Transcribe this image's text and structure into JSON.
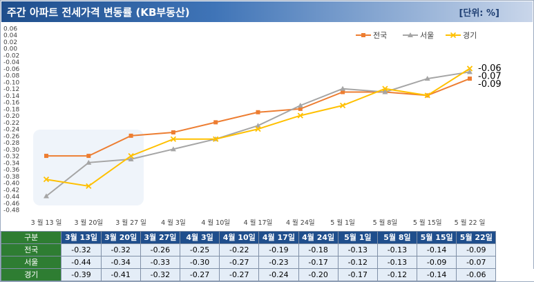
{
  "header": {
    "title": "주간 아파트 전세가격 변동률 (KB부동산)",
    "unit_label": "[단위: %]"
  },
  "table": {
    "corner_label": "구분"
  },
  "chart_data": {
    "type": "line",
    "title": "주간 아파트 전세가격 변동률 (KB부동산)",
    "unit": "[단위: %]",
    "categories": [
      "3월 13일",
      "3월 20일",
      "3월 27일",
      "4월 3일",
      "4월 10일",
      "4월 17일",
      "4월 24일",
      "5월 1일",
      "5월 8일",
      "5월 15일",
      "5월 22일"
    ],
    "axis_categories": [
      "3 월 13 일",
      "3 월 20일",
      "3 월 27 일",
      "4 월 3일",
      "4 월 10일",
      "4 월 17일",
      "4 월 24일",
      "5 월 1일",
      "5 월 8일",
      "5 월 15일",
      "5 월 22 일"
    ],
    "ylim": [
      -0.48,
      0.06
    ],
    "ytick_step": 0.02,
    "ytick_labels": [
      "0.06",
      "0.04",
      "0.02",
      "0.00",
      "-0.02",
      "-0.04",
      "-0.06",
      "-0.08",
      "-0.10",
      "-0.12",
      "-0.14",
      "-0.16",
      "-0.18",
      "-0.20",
      "-0.22",
      "-0.24",
      "-0.26",
      "-0.28",
      "-0.30",
      "-0.32",
      "-0.34",
      "-0.36",
      "-0.38",
      "-0.40",
      "-0.42",
      "-0.44",
      "-0.46",
      "-0.48"
    ],
    "grid": false,
    "legend_position": "top-right",
    "series": [
      {
        "name": "전국",
        "color": "#ed7d31",
        "marker": "square",
        "values": [
          -0.32,
          -0.32,
          -0.26,
          -0.25,
          -0.22,
          -0.19,
          -0.18,
          -0.13,
          -0.13,
          -0.14,
          -0.09
        ],
        "end_label": "-0.09"
      },
      {
        "name": "서울",
        "color": "#a5a5a5",
        "marker": "triangle",
        "values": [
          -0.44,
          -0.34,
          -0.33,
          -0.3,
          -0.27,
          -0.23,
          -0.17,
          -0.12,
          -0.13,
          -0.09,
          -0.07
        ],
        "end_label": "-0.07"
      },
      {
        "name": "경기",
        "color": "#ffc000",
        "marker": "x",
        "values": [
          -0.39,
          -0.41,
          -0.32,
          -0.27,
          -0.27,
          -0.24,
          -0.2,
          -0.17,
          -0.12,
          -0.14,
          -0.06
        ],
        "end_label": "-0.06"
      }
    ],
    "table_values": [
      [
        "-0.32",
        "-0.32",
        "-0.26",
        "-0.25",
        "-0.22",
        "-0.19",
        "-0.18",
        "-0.13",
        "-0.13",
        "-0.14",
        "-0.09"
      ],
      [
        "-0.44",
        "-0.34",
        "-0.33",
        "-0.30",
        "-0.27",
        "-0.23",
        "-0.17",
        "-0.12",
        "-0.13",
        "-0.09",
        "-0.07"
      ],
      [
        "-0.39",
        "-0.41",
        "-0.32",
        "-0.27",
        "-0.27",
        "-0.24",
        "-0.20",
        "-0.17",
        "-0.12",
        "-0.14",
        "-0.06"
      ]
    ]
  }
}
